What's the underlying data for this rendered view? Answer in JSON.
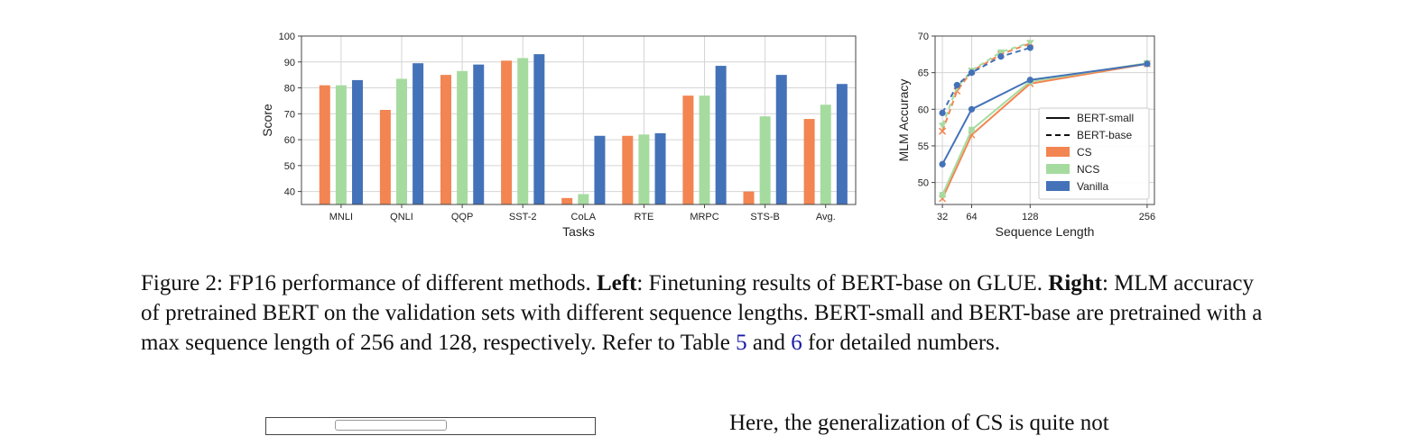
{
  "caption": {
    "lead": "Figure 2: FP16 performance of different methods. ",
    "left_label": "Left",
    "left_text": ": Finetuning results of BERT-base on GLUE. ",
    "right_label": "Right",
    "right_text": ": MLM accuracy of pretrained BERT on the validation sets with different sequence lengths. BERT-small and BERT-base are pretrained with a max sequence length of 256 and 128, respectively. Refer to Table ",
    "ref_a": "5",
    "and": " and ",
    "ref_b": "6",
    "tail": " for detailed numbers."
  },
  "next_text": "Here, the generalization of CS is quite not",
  "colors": {
    "CS": "#f28552",
    "NCS": "#a6dba0",
    "Vanilla": "#4472b8"
  },
  "chart_data": [
    {
      "type": "bar",
      "title": "",
      "xlabel": "Tasks",
      "ylabel": "Score",
      "ylim": [
        35,
        100
      ],
      "yticks": [
        40,
        50,
        60,
        70,
        80,
        90,
        100
      ],
      "grid": true,
      "categories": [
        "MNLI",
        "QNLI",
        "QQP",
        "SST-2",
        "CoLA",
        "RTE",
        "MRPC",
        "STS-B",
        "Avg."
      ],
      "series": [
        {
          "name": "CS",
          "values": [
            81,
            71.5,
            85,
            90.5,
            37.5,
            61.5,
            77,
            40,
            68
          ]
        },
        {
          "name": "NCS",
          "values": [
            81,
            83.5,
            86.5,
            91.5,
            39,
            62,
            77,
            69,
            73.5
          ]
        },
        {
          "name": "Vanilla",
          "values": [
            83,
            89.5,
            89,
            93,
            61.5,
            62.5,
            88.5,
            85,
            81.5
          ]
        }
      ]
    },
    {
      "type": "line",
      "title": "",
      "xlabel": "Sequence Length",
      "ylabel": "MLM Accuracy",
      "xlim": [
        24,
        264
      ],
      "ylim": [
        47,
        70
      ],
      "xticks": [
        32,
        64,
        128,
        256
      ],
      "yticks": [
        50,
        55,
        60,
        65,
        70
      ],
      "grid": true,
      "legend": {
        "position": "bottom-right",
        "entries": [
          {
            "label": "BERT-small",
            "style": "solid"
          },
          {
            "label": "BERT-base",
            "style": "dashed"
          },
          {
            "label": "CS",
            "style": "patch",
            "color": "CS"
          },
          {
            "label": "NCS",
            "style": "patch",
            "color": "NCS"
          },
          {
            "label": "Vanilla",
            "style": "patch",
            "color": "Vanilla"
          }
        ]
      },
      "series": [
        {
          "name": "BERT-small CS",
          "group": "CS",
          "style": "solid",
          "marker": "x",
          "x": [
            32,
            64,
            128,
            256
          ],
          "y": [
            47.8,
            56.5,
            63.5,
            66.2
          ]
        },
        {
          "name": "BERT-small NCS",
          "group": "NCS",
          "style": "solid",
          "marker": "s",
          "x": [
            32,
            64,
            128,
            256
          ],
          "y": [
            48.3,
            57.2,
            63.8,
            66.3
          ]
        },
        {
          "name": "BERT-small Vanilla",
          "group": "Vanilla",
          "style": "solid",
          "marker": "o",
          "x": [
            32,
            64,
            128,
            256
          ],
          "y": [
            52.5,
            60.0,
            64.0,
            66.2
          ]
        },
        {
          "name": "BERT-base CS",
          "group": "CS",
          "style": "dashed",
          "marker": "x",
          "x": [
            32,
            48,
            64,
            96,
            128
          ],
          "y": [
            57.0,
            62.5,
            65.2,
            67.5,
            69.0
          ]
        },
        {
          "name": "BERT-base NCS",
          "group": "NCS",
          "style": "dashed",
          "marker": "v",
          "x": [
            32,
            48,
            64,
            96,
            128
          ],
          "y": [
            57.8,
            63.0,
            65.3,
            67.8,
            69.1
          ]
        },
        {
          "name": "BERT-base Vanilla",
          "group": "Vanilla",
          "style": "dashed",
          "marker": "o",
          "x": [
            32,
            48,
            64,
            96,
            128
          ],
          "y": [
            59.5,
            63.3,
            65.0,
            67.2,
            68.4
          ]
        }
      ]
    }
  ]
}
